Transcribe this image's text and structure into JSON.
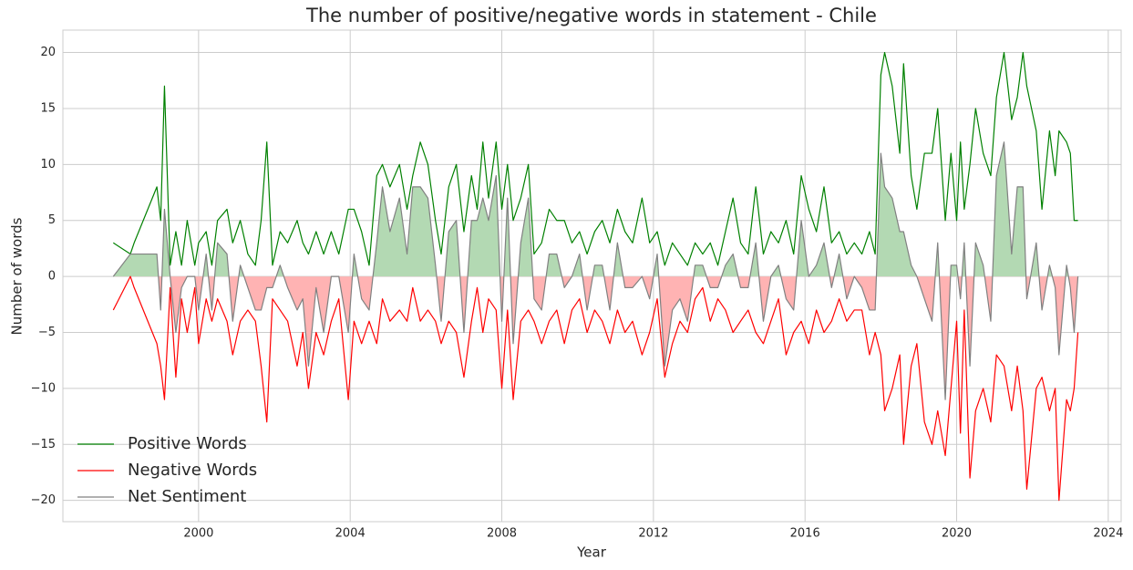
{
  "chart_data": {
    "type": "line",
    "title": "The number of positive/negative words in statement - Chile",
    "xlabel": "Year",
    "ylabel": "Number of words",
    "x": [
      1997.75,
      1998.2,
      1998.3,
      1998.9,
      1999.0,
      1999.1,
      1999.25,
      1999.4,
      1999.55,
      1999.7,
      1999.9,
      2000.0,
      2000.2,
      2000.35,
      2000.5,
      2000.75,
      2000.9,
      2001.1,
      2001.3,
      2001.5,
      2001.65,
      2001.8,
      2001.95,
      2002.15,
      2002.35,
      2002.6,
      2002.75,
      2002.9,
      2003.1,
      2003.3,
      2003.5,
      2003.7,
      2003.95,
      2004.1,
      2004.3,
      2004.5,
      2004.7,
      2004.85,
      2005.05,
      2005.3,
      2005.5,
      2005.65,
      2005.85,
      2006.05,
      2006.25,
      2006.4,
      2006.6,
      2006.8,
      2007.0,
      2007.2,
      2007.35,
      2007.5,
      2007.65,
      2007.85,
      2008.0,
      2008.15,
      2008.3,
      2008.5,
      2008.7,
      2008.85,
      2009.05,
      2009.25,
      2009.45,
      2009.65,
      2009.85,
      2010.05,
      2010.25,
      2010.45,
      2010.65,
      2010.85,
      2011.05,
      2011.25,
      2011.45,
      2011.7,
      2011.9,
      2012.1,
      2012.3,
      2012.5,
      2012.7,
      2012.9,
      2013.1,
      2013.3,
      2013.5,
      2013.7,
      2013.9,
      2014.1,
      2014.3,
      2014.5,
      2014.7,
      2014.9,
      2015.1,
      2015.3,
      2015.5,
      2015.7,
      2015.9,
      2016.1,
      2016.3,
      2016.5,
      2016.7,
      2016.9,
      2017.1,
      2017.3,
      2017.5,
      2017.7,
      2017.85,
      2018.0,
      2018.1,
      2018.3,
      2018.5,
      2018.6,
      2018.8,
      2018.95,
      2019.15,
      2019.35,
      2019.5,
      2019.7,
      2019.85,
      2020.0,
      2020.1,
      2020.2,
      2020.35,
      2020.5,
      2020.7,
      2020.9,
      2021.05,
      2021.25,
      2021.45,
      2021.6,
      2021.75,
      2021.85,
      2022.1,
      2022.25,
      2022.45,
      2022.6,
      2022.7,
      2022.9,
      2023.0,
      2023.1,
      2023.2
    ],
    "series": [
      {
        "name": "Positive Words",
        "color": "#008000",
        "values": [
          3,
          2,
          3,
          8,
          5,
          17,
          1,
          4,
          1,
          5,
          1,
          3,
          4,
          1,
          5,
          6,
          3,
          5,
          2,
          1,
          5,
          12,
          1,
          4,
          3,
          5,
          3,
          2,
          4,
          2,
          4,
          2,
          6,
          6,
          4,
          1,
          9,
          10,
          8,
          10,
          6,
          9,
          12,
          10,
          5,
          2,
          8,
          10,
          4,
          9,
          6,
          12,
          7,
          12,
          6,
          10,
          5,
          7,
          10,
          2,
          3,
          6,
          5,
          5,
          3,
          4,
          2,
          4,
          5,
          3,
          6,
          4,
          3,
          7,
          3,
          4,
          1,
          3,
          2,
          1,
          3,
          2,
          3,
          1,
          4,
          7,
          3,
          2,
          8,
          2,
          4,
          3,
          5,
          2,
          9,
          6,
          4,
          8,
          3,
          4,
          2,
          3,
          2,
          4,
          2,
          18,
          20,
          17,
          11,
          19,
          9,
          6,
          11,
          11,
          15,
          5,
          11,
          5,
          12,
          6,
          10,
          15,
          11,
          9,
          16,
          20,
          14,
          16,
          20,
          17,
          13,
          6,
          13,
          9,
          13,
          12,
          11,
          5,
          5
        ]
      },
      {
        "name": "Negative Words",
        "color": "#ff0000",
        "values": [
          -3,
          0,
          -1,
          -6,
          -8,
          -11,
          -1,
          -9,
          -2,
          -5,
          -1,
          -6,
          -2,
          -4,
          -2,
          -4,
          -7,
          -4,
          -3,
          -4,
          -8,
          -13,
          -2,
          -3,
          -4,
          -8,
          -5,
          -10,
          -5,
          -7,
          -4,
          -2,
          -11,
          -4,
          -6,
          -4,
          -6,
          -2,
          -4,
          -3,
          -4,
          -1,
          -4,
          -3,
          -4,
          -6,
          -4,
          -5,
          -9,
          -4,
          -1,
          -5,
          -2,
          -3,
          -10,
          -3,
          -11,
          -4,
          -3,
          -4,
          -6,
          -4,
          -3,
          -6,
          -3,
          -2,
          -5,
          -3,
          -4,
          -6,
          -3,
          -5,
          -4,
          -7,
          -5,
          -2,
          -9,
          -6,
          -4,
          -5,
          -2,
          -1,
          -4,
          -2,
          -3,
          -5,
          -4,
          -3,
          -5,
          -6,
          -4,
          -2,
          -7,
          -5,
          -4,
          -6,
          -3,
          -5,
          -4,
          -2,
          -4,
          -3,
          -3,
          -7,
          -5,
          -7,
          -12,
          -10,
          -7,
          -15,
          -8,
          -6,
          -13,
          -15,
          -12,
          -16,
          -10,
          -4,
          -14,
          -3,
          -18,
          -12,
          -10,
          -13,
          -7,
          -8,
          -12,
          -8,
          -12,
          -19,
          -10,
          -9,
          -12,
          -10,
          -20,
          -11,
          -12,
          -10,
          -5
        ]
      },
      {
        "name": "Net Sentiment",
        "color": "#808080",
        "values": [
          0,
          2,
          2,
          2,
          -3,
          6,
          0,
          -5,
          -1,
          0,
          0,
          -3,
          2,
          -3,
          3,
          2,
          -4,
          1,
          -1,
          -3,
          -3,
          -1,
          -1,
          1,
          -1,
          -3,
          -2,
          -8,
          -1,
          -5,
          0,
          0,
          -5,
          2,
          -2,
          -3,
          3,
          8,
          4,
          7,
          2,
          8,
          8,
          7,
          1,
          -4,
          4,
          5,
          -5,
          5,
          5,
          7,
          5,
          9,
          -4,
          7,
          -6,
          3,
          7,
          -2,
          -3,
          2,
          2,
          -1,
          0,
          2,
          -3,
          1,
          1,
          -3,
          3,
          -1,
          -1,
          0,
          -2,
          2,
          -8,
          -3,
          -2,
          -4,
          1,
          1,
          -1,
          -1,
          1,
          2,
          -1,
          -1,
          3,
          -4,
          0,
          1,
          -2,
          -3,
          5,
          0,
          1,
          3,
          -1,
          2,
          -2,
          0,
          -1,
          -3,
          -3,
          11,
          8,
          7,
          4,
          4,
          1,
          0,
          -2,
          -4,
          3,
          -11,
          1,
          1,
          -2,
          3,
          -8,
          3,
          1,
          -4,
          9,
          12,
          2,
          8,
          8,
          -2,
          3,
          -3,
          1,
          -1,
          -7,
          1,
          -1,
          -5,
          0
        ]
      }
    ],
    "positive_fill_color": "#b3d9b3",
    "negative_fill_color": "#ffb3b3",
    "xlim": [
      1996.42,
      2024.34
    ],
    "ylim": [
      -21.9,
      22.0
    ],
    "xticks": [
      2000,
      2004,
      2008,
      2012,
      2016,
      2020,
      2024
    ],
    "yticks": [
      {
        "value": -20,
        "label": "−20"
      },
      {
        "value": -15,
        "label": "−15"
      },
      {
        "value": -10,
        "label": "−10"
      },
      {
        "value": -5,
        "label": "−5"
      },
      0,
      5,
      10,
      15,
      20
    ],
    "grid": true,
    "legend": "lower left"
  }
}
